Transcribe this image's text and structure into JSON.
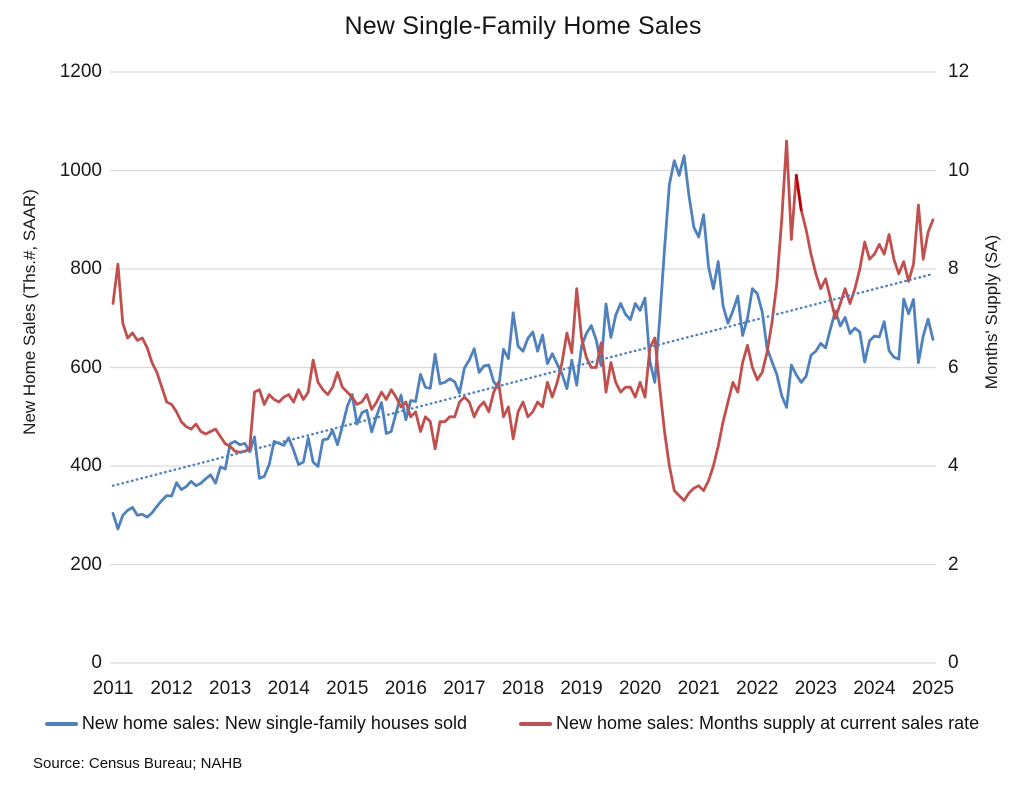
{
  "page": {
    "source_note": "Source: Census Bureau; NAHB"
  },
  "chart_data": {
    "type": "line",
    "title": "New Single-Family Home Sales",
    "frequency": "monthly",
    "x_start": "2011-01",
    "x_end": "2025-01",
    "grid": "horizontal",
    "legend_position": "bottom",
    "background": "#ffffff",
    "gridline_color": "#d9d9d9",
    "x_tick_labels": [
      "2011",
      "2012",
      "2013",
      "2014",
      "2015",
      "2016",
      "2017",
      "2018",
      "2019",
      "2020",
      "2021",
      "2022",
      "2023",
      "2024",
      "2025"
    ],
    "left_axis": {
      "label": "New Home Sales (Ths.#, SAAR)",
      "range": [
        0,
        1200
      ],
      "ticks": [
        "0",
        "200",
        "400",
        "600",
        "800",
        "1000",
        "1200"
      ]
    },
    "right_axis": {
      "label": "Months' Supply (SA)",
      "range": [
        0,
        12
      ],
      "ticks": [
        "0",
        "2",
        "4",
        "6",
        "8",
        "10",
        "12"
      ]
    },
    "series": [
      {
        "name": "New home sales: New single-family houses sold",
        "axis": "left",
        "color": "#4F81BD",
        "values": [
          304,
          272,
          300,
          310,
          316,
          300,
          302,
          296,
          305,
          318,
          330,
          340,
          339,
          366,
          352,
          358,
          369,
          360,
          365,
          374,
          382,
          365,
          398,
          394,
          445,
          450,
          443,
          446,
          429,
          459,
          375,
          379,
          403,
          450,
          446,
          442,
          457,
          432,
          403,
          408,
          457,
          408,
          399,
          453,
          455,
          472,
          443,
          481,
          521,
          545,
          485,
          508,
          513,
          469,
          502,
          529,
          466,
          470,
          508,
          544,
          494,
          533,
          531,
          586,
          560,
          558,
          627,
          567,
          570,
          577,
          571,
          548,
          599,
          615,
          638,
          590,
          603,
          605,
          571,
          559,
          637,
          618,
          711,
          643,
          633,
          659,
          672,
          633,
          666,
          608,
          628,
          607,
          587,
          557,
          615,
          564,
          644,
          669,
          685,
          656,
          604,
          729,
          661,
          706,
          730,
          708,
          697,
          730,
          716,
          741,
          612,
          570,
          698,
          840,
          972,
          1020,
          990,
          1030,
          950,
          885,
          865,
          910,
          805,
          760,
          815,
          725,
          690,
          715,
          745,
          665,
          700,
          760,
          750,
          713,
          640,
          612,
          586,
          543,
          519,
          605,
          585,
          570,
          582,
          625,
          633,
          649,
          640,
          679,
          715,
          684,
          702,
          669,
          680,
          672,
          611,
          654,
          664,
          662,
          693,
          634,
          621,
          617,
          739,
          709,
          738,
          610,
          664,
          698,
          657
        ]
      },
      {
        "name": "New home sales: Months supply at current sales rate",
        "axis": "right",
        "color": "#C0504D",
        "highlight": {
          "color": "#C00000",
          "from_index": 140,
          "to_index": 141
        },
        "values": [
          7.3,
          8.1,
          6.9,
          6.6,
          6.7,
          6.55,
          6.6,
          6.4,
          6.1,
          5.9,
          5.6,
          5.3,
          5.25,
          5.1,
          4.9,
          4.8,
          4.75,
          4.85,
          4.7,
          4.65,
          4.7,
          4.75,
          4.6,
          4.45,
          4.4,
          4.3,
          4.28,
          4.3,
          4.35,
          5.5,
          5.55,
          5.25,
          5.45,
          5.35,
          5.3,
          5.4,
          5.45,
          5.3,
          5.55,
          5.35,
          5.5,
          6.15,
          5.7,
          5.55,
          5.45,
          5.6,
          5.9,
          5.6,
          5.5,
          5.4,
          5.25,
          5.3,
          5.45,
          5.15,
          5.3,
          5.5,
          5.35,
          5.55,
          5.4,
          5.2,
          5.3,
          5.0,
          5.1,
          4.7,
          5.0,
          4.9,
          4.35,
          4.9,
          4.9,
          5.0,
          5.0,
          5.3,
          5.4,
          5.3,
          5.0,
          5.2,
          5.3,
          5.1,
          5.5,
          5.7,
          5.0,
          5.2,
          4.55,
          5.1,
          5.3,
          5.0,
          5.1,
          5.3,
          5.2,
          5.7,
          5.4,
          5.7,
          6.1,
          6.7,
          6.3,
          7.6,
          6.6,
          6.2,
          6.0,
          6.0,
          6.5,
          5.5,
          6.1,
          5.7,
          5.5,
          5.6,
          5.6,
          5.4,
          5.7,
          5.4,
          6.4,
          6.6,
          5.6,
          4.7,
          4.0,
          3.5,
          3.4,
          3.3,
          3.45,
          3.55,
          3.6,
          3.5,
          3.7,
          4.0,
          4.4,
          4.9,
          5.3,
          5.7,
          5.5,
          6.1,
          6.45,
          6.0,
          5.75,
          5.9,
          6.3,
          6.9,
          7.7,
          9.0,
          10.6,
          8.6,
          9.9,
          9.2,
          8.8,
          8.3,
          7.9,
          7.6,
          7.8,
          7.4,
          7.0,
          7.3,
          7.6,
          7.3,
          7.6,
          8.0,
          8.55,
          8.2,
          8.3,
          8.5,
          8.3,
          8.7,
          8.2,
          7.9,
          8.15,
          7.75,
          8.1,
          9.3,
          8.2,
          8.75,
          9.0
        ]
      }
    ],
    "trend_line": {
      "applies_to_series": "New home sales: New single-family houses sold",
      "style": "dotted",
      "color": "#4F81BD",
      "start_value": 360,
      "end_value": 790
    }
  }
}
